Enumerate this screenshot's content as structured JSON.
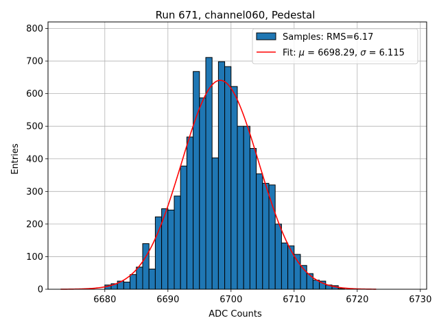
{
  "chart_data": {
    "type": "bar",
    "title": "Run 671, channel060, Pedestal",
    "xlabel": "ADC Counts",
    "ylabel": "Entries",
    "xlim": [
      6671,
      6731
    ],
    "ylim": [
      0,
      820
    ],
    "xticks": [
      6680,
      6690,
      6700,
      6710,
      6720,
      6730
    ],
    "yticks": [
      0,
      100,
      200,
      300,
      400,
      500,
      600,
      700,
      800
    ],
    "grid": true,
    "legend_position": "top-right",
    "histogram": {
      "name": "Samples: RMS=6.17",
      "color": "#1f77b4",
      "bin_edges_start": 6680,
      "bin_width": 1,
      "counts": [
        13,
        17,
        25,
        22,
        45,
        68,
        140,
        62,
        222,
        247,
        243,
        286,
        378,
        467,
        668,
        587,
        711,
        403,
        698,
        683,
        622,
        500,
        500,
        432,
        354,
        325,
        320,
        200,
        142,
        133,
        107,
        73,
        48,
        28,
        25,
        13,
        11,
        2
      ]
    },
    "fit": {
      "name_prefix": "Fit: ",
      "name_mu": "μ",
      "name_mid": " = 6698.29, ",
      "name_sigma": "σ",
      "name_suffix": " = 6.115",
      "color": "#ff0000",
      "mu": 6698.29,
      "sigma": 6.115,
      "amplitude": 641,
      "x_range": [
        6673,
        6723
      ]
    }
  }
}
